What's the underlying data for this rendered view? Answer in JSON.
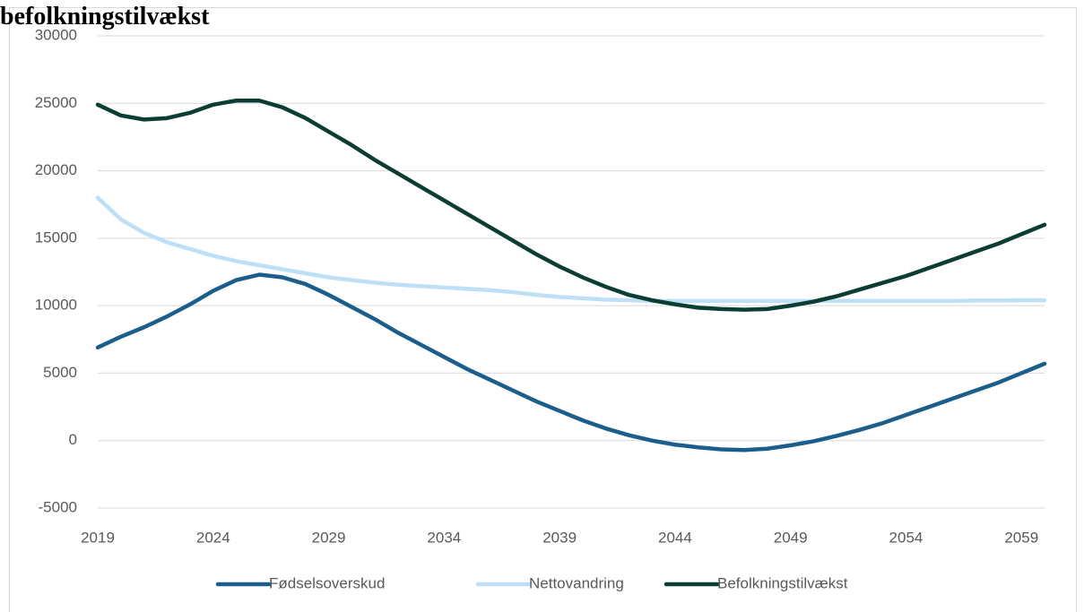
{
  "chart_data": {
    "type": "line",
    "title": "befolkningstilvækst",
    "x": [
      2019,
      2020,
      2021,
      2022,
      2023,
      2024,
      2025,
      2026,
      2027,
      2028,
      2029,
      2030,
      2031,
      2032,
      2033,
      2034,
      2035,
      2036,
      2037,
      2038,
      2039,
      2040,
      2041,
      2042,
      2043,
      2044,
      2045,
      2046,
      2047,
      2048,
      2049,
      2050,
      2051,
      2052,
      2053,
      2054,
      2055,
      2056,
      2057,
      2058,
      2059,
      2060
    ],
    "series": [
      {
        "name": "Fødselsoverskud",
        "color": "#1b5e8c",
        "values": [
          6900,
          7700,
          8400,
          9200,
          10100,
          11100,
          11900,
          12300,
          12100,
          11600,
          10800,
          9900,
          9000,
          8000,
          7100,
          6200,
          5300,
          4500,
          3700,
          2900,
          2200,
          1500,
          900,
          400,
          0,
          -300,
          -500,
          -650,
          -700,
          -600,
          -350,
          -50,
          350,
          800,
          1300,
          1900,
          2500,
          3100,
          3700,
          4300,
          5000,
          5700
        ]
      },
      {
        "name": "Nettovandring",
        "color": "#bde0f7",
        "values": [
          18000,
          16400,
          15400,
          14700,
          14200,
          13700,
          13300,
          13000,
          12700,
          12400,
          12100,
          11900,
          11700,
          11550,
          11450,
          11350,
          11250,
          11150,
          11000,
          10800,
          10650,
          10550,
          10450,
          10400,
          10350,
          10350,
          10350,
          10350,
          10350,
          10350,
          10350,
          10350,
          10350,
          10350,
          10350,
          10350,
          10350,
          10350,
          10380,
          10380,
          10400,
          10400
        ]
      },
      {
        "name": "Befolkningstilvækst",
        "color": "#0b3d33",
        "values": [
          24900,
          24100,
          23800,
          23900,
          24300,
          24900,
          25200,
          25200,
          24700,
          23900,
          22900,
          21900,
          20800,
          19800,
          18800,
          17800,
          16800,
          15800,
          14800,
          13800,
          12900,
          12100,
          11400,
          10800,
          10400,
          10100,
          9850,
          9750,
          9700,
          9750,
          10000,
          10300,
          10700,
          11200,
          11700,
          12200,
          12800,
          13400,
          14000,
          14600,
          15300,
          16000
        ]
      }
    ],
    "xlim": [
      2019,
      2060
    ],
    "xticks": [
      2019,
      2024,
      2029,
      2034,
      2039,
      2044,
      2049,
      2054,
      2059
    ],
    "ylim": [
      -5000,
      30000
    ],
    "yticks": [
      -5000,
      0,
      5000,
      10000,
      15000,
      20000,
      25000,
      30000
    ],
    "grid": true,
    "legend": "bottom"
  }
}
